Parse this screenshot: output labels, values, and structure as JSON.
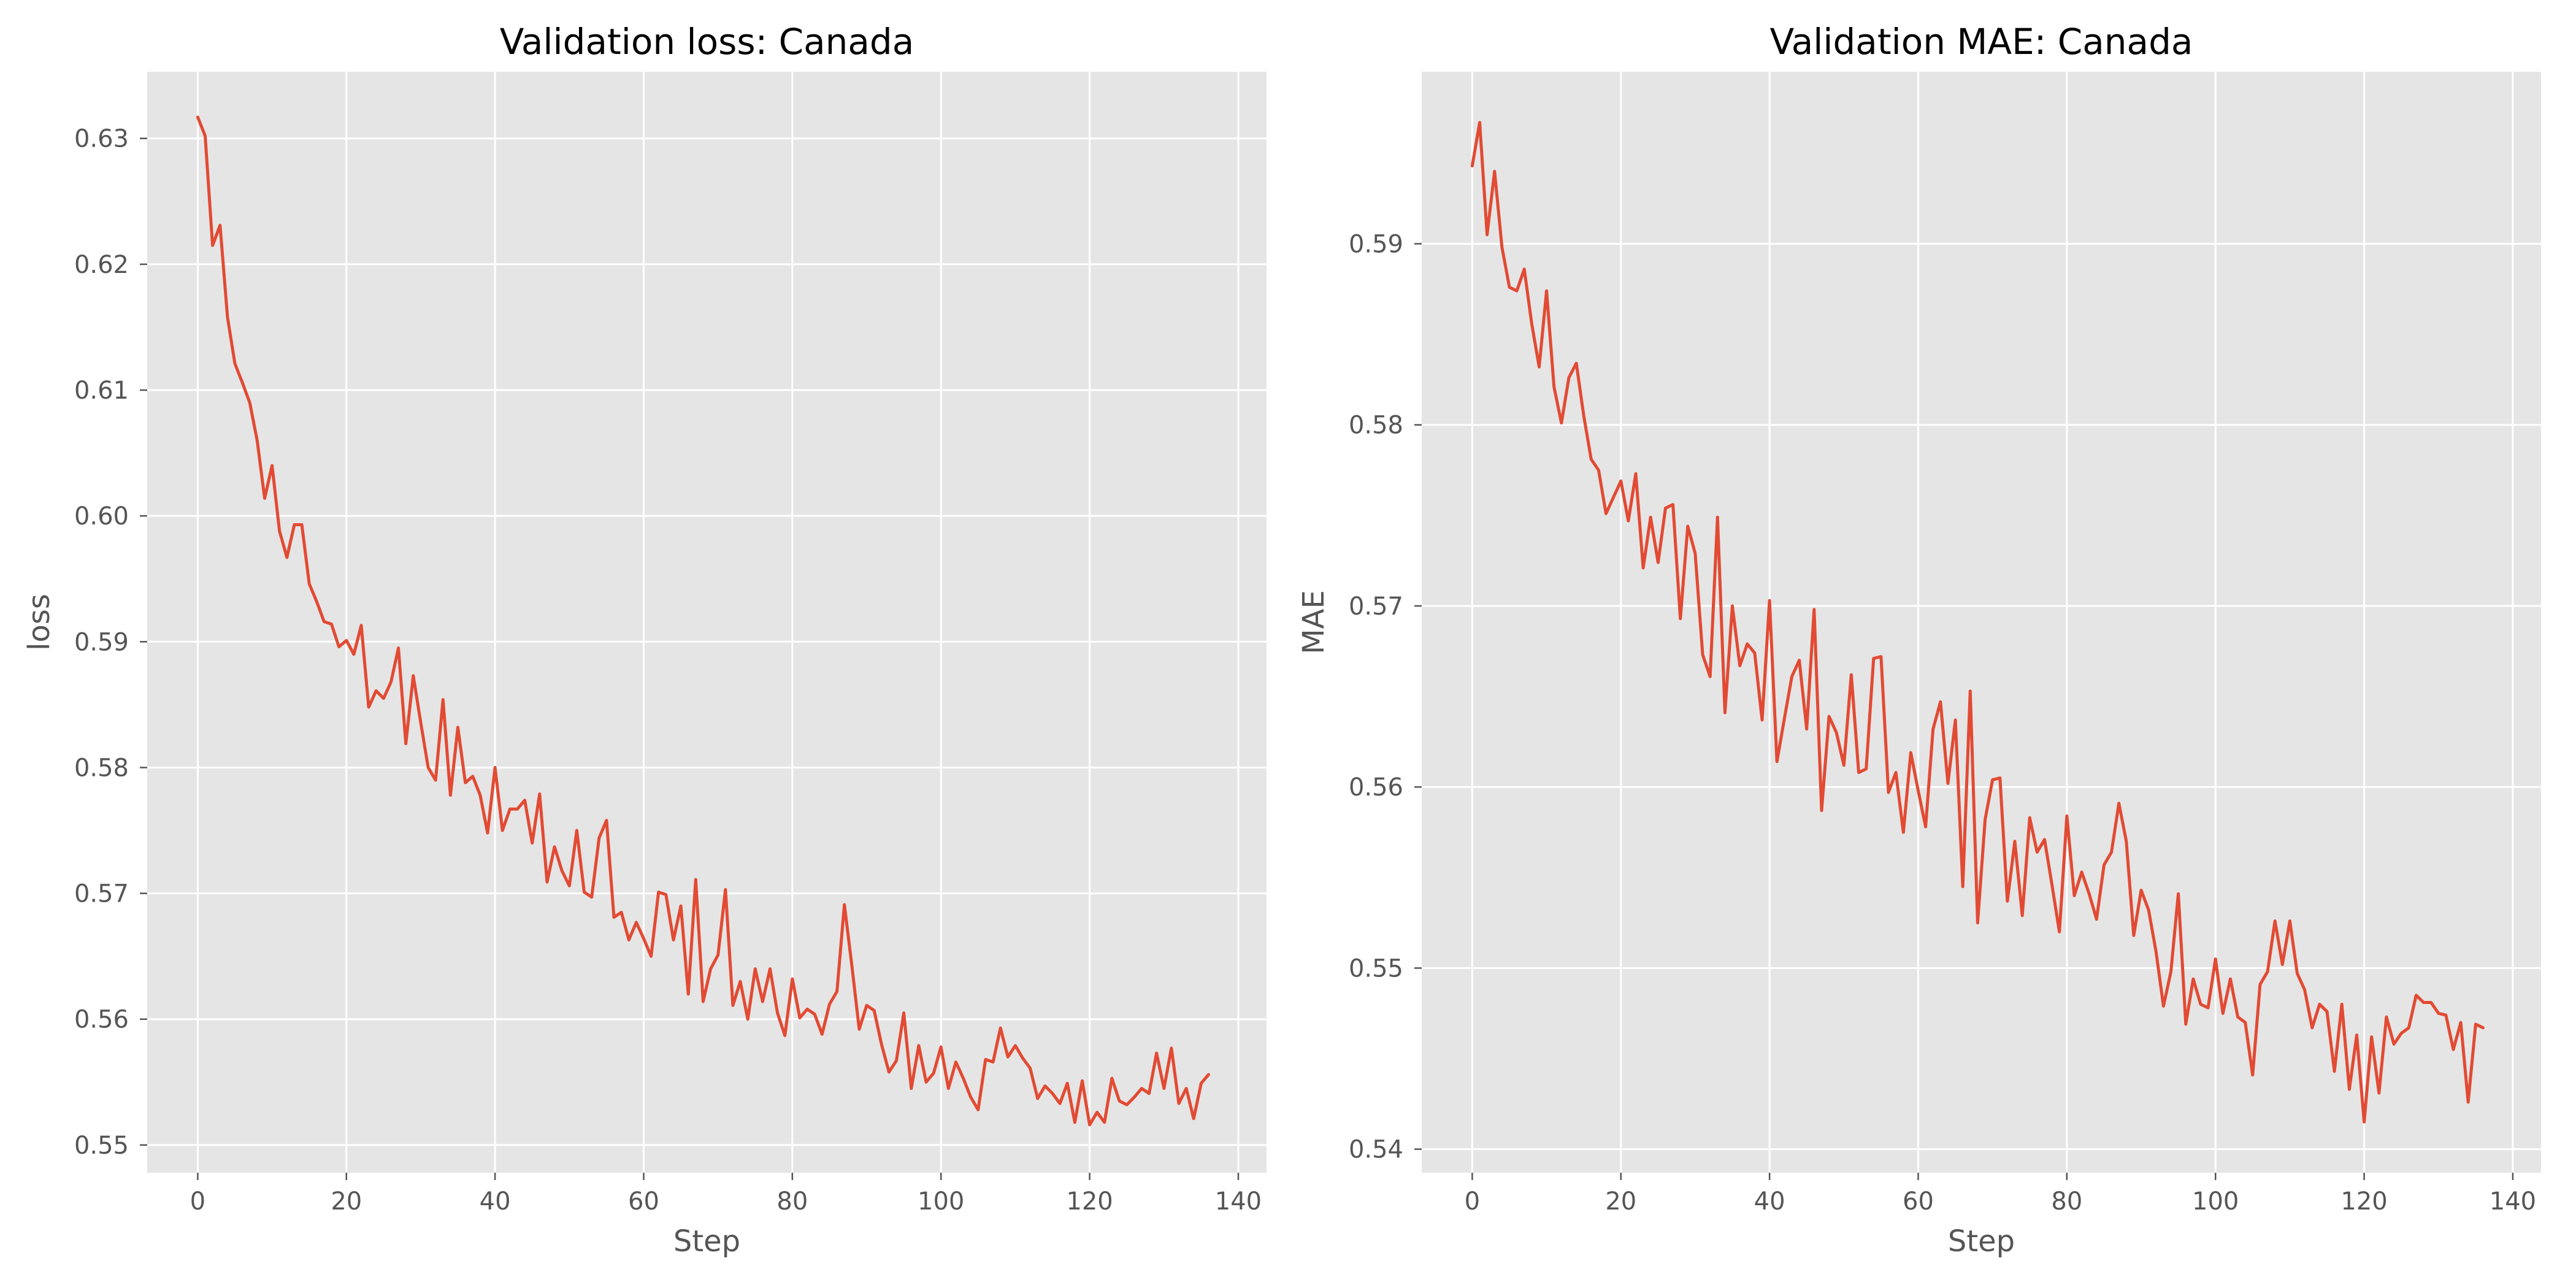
{
  "figure": {
    "background": "#ffffff",
    "panel_background": "#e5e5e5",
    "grid_color": "#ffffff",
    "line_color": "#e24a33",
    "text_color": "#555555"
  },
  "chart_data": [
    {
      "type": "line",
      "title": "Validation loss: Canada",
      "xlabel": "Step",
      "ylabel": "loss",
      "xlim": [
        -6.8,
        143.8
      ],
      "ylim": [
        0.5478,
        0.6353
      ],
      "xticks": [
        0,
        20,
        40,
        60,
        80,
        100,
        120,
        140
      ],
      "xtick_labels": [
        "0",
        "20",
        "40",
        "60",
        "80",
        "100",
        "120",
        "140"
      ],
      "yticks": [
        0.55,
        0.56,
        0.57,
        0.58,
        0.59,
        0.6,
        0.61,
        0.62,
        0.63
      ],
      "ytick_labels": [
        "0.55",
        "0.56",
        "0.57",
        "0.58",
        "0.59",
        "0.60",
        "0.61",
        "0.62",
        "0.63"
      ],
      "grid": true,
      "series": [
        {
          "color": "#e24a33",
          "x_start": 0,
          "x_step": 1,
          "values": [
            0.6317,
            0.6302,
            0.6215,
            0.6231,
            0.6158,
            0.6121,
            0.6106,
            0.609,
            0.606,
            0.6014,
            0.604,
            0.5988,
            0.5967,
            0.5993,
            0.5993,
            0.5946,
            0.5932,
            0.5916,
            0.5914,
            0.5896,
            0.5901,
            0.589,
            0.5913,
            0.5848,
            0.5861,
            0.5855,
            0.5868,
            0.5895,
            0.5819,
            0.5873,
            0.5836,
            0.58,
            0.579,
            0.5854,
            0.5778,
            0.5832,
            0.5788,
            0.5793,
            0.5778,
            0.5748,
            0.58,
            0.575,
            0.5767,
            0.5767,
            0.5774,
            0.574,
            0.5779,
            0.5709,
            0.5737,
            0.5718,
            0.5706,
            0.575,
            0.5701,
            0.5697,
            0.5744,
            0.5758,
            0.5681,
            0.5685,
            0.5663,
            0.5677,
            0.5664,
            0.565,
            0.5701,
            0.5699,
            0.5663,
            0.569,
            0.562,
            0.5711,
            0.5614,
            0.564,
            0.5651,
            0.5703,
            0.5611,
            0.563,
            0.56,
            0.564,
            0.5614,
            0.564,
            0.5605,
            0.5587,
            0.5632,
            0.5601,
            0.5608,
            0.5604,
            0.5588,
            0.5612,
            0.5622,
            0.5691,
            0.5643,
            0.5592,
            0.5611,
            0.5607,
            0.558,
            0.5558,
            0.5567,
            0.5605,
            0.5545,
            0.5579,
            0.555,
            0.5557,
            0.5578,
            0.5545,
            0.5566,
            0.5553,
            0.5538,
            0.5528,
            0.5568,
            0.5566,
            0.5593,
            0.557,
            0.5579,
            0.5569,
            0.5561,
            0.5537,
            0.5547,
            0.5541,
            0.5533,
            0.5549,
            0.5518,
            0.5551,
            0.5516,
            0.5526,
            0.5518,
            0.5553,
            0.5535,
            0.5532,
            0.5538,
            0.5545,
            0.5541,
            0.5573,
            0.5545,
            0.5577,
            0.5533,
            0.5545,
            0.5521,
            0.5549,
            0.5556
          ]
        }
      ]
    },
    {
      "type": "line",
      "title": "Validation MAE: Canada",
      "xlabel": "Step",
      "ylabel": "MAE",
      "xlim": [
        -6.8,
        143.8
      ],
      "ylim": [
        0.5387,
        0.5995
      ],
      "xticks": [
        0,
        20,
        40,
        60,
        80,
        100,
        120,
        140
      ],
      "xtick_labels": [
        "0",
        "20",
        "40",
        "60",
        "80",
        "100",
        "120",
        "140"
      ],
      "yticks": [
        0.54,
        0.55,
        0.56,
        0.57,
        0.58,
        0.59
      ],
      "ytick_labels": [
        "0.54",
        "0.55",
        "0.56",
        "0.57",
        "0.58",
        "0.59"
      ],
      "grid": true,
      "series": [
        {
          "color": "#e24a33",
          "x_start": 0,
          "x_step": 1,
          "values": [
            0.5943,
            0.5967,
            0.5905,
            0.594,
            0.5898,
            0.5876,
            0.5874,
            0.5886,
            0.5856,
            0.5832,
            0.5874,
            0.5821,
            0.5801,
            0.5826,
            0.5834,
            0.5805,
            0.5781,
            0.5775,
            0.5751,
            0.576,
            0.5769,
            0.5747,
            0.5773,
            0.5721,
            0.5749,
            0.5724,
            0.5754,
            0.5756,
            0.5693,
            0.5744,
            0.5729,
            0.5673,
            0.5661,
            0.5749,
            0.5641,
            0.57,
            0.5667,
            0.5679,
            0.5674,
            0.5637,
            0.5703,
            0.5614,
            0.5638,
            0.5661,
            0.567,
            0.5632,
            0.5698,
            0.5587,
            0.5639,
            0.563,
            0.5612,
            0.5662,
            0.5608,
            0.561,
            0.5671,
            0.5672,
            0.5597,
            0.5608,
            0.5575,
            0.5619,
            0.5598,
            0.5578,
            0.5632,
            0.5647,
            0.5602,
            0.5637,
            0.5545,
            0.5653,
            0.5525,
            0.5582,
            0.5604,
            0.5605,
            0.5537,
            0.557,
            0.5529,
            0.5583,
            0.5564,
            0.5571,
            0.5546,
            0.552,
            0.5584,
            0.554,
            0.5553,
            0.5541,
            0.5527,
            0.5557,
            0.5564,
            0.5591,
            0.557,
            0.5518,
            0.5543,
            0.5532,
            0.5509,
            0.5479,
            0.5498,
            0.5541,
            0.5469,
            0.5494,
            0.548,
            0.5478,
            0.5505,
            0.5475,
            0.5494,
            0.5473,
            0.547,
            0.5441,
            0.5491,
            0.5498,
            0.5526,
            0.5502,
            0.5526,
            0.5497,
            0.5488,
            0.5467,
            0.548,
            0.5476,
            0.5443,
            0.548,
            0.5433,
            0.5463,
            0.5415,
            0.5462,
            0.5431,
            0.5473,
            0.5458,
            0.5464,
            0.5467,
            0.5485,
            0.5481,
            0.5481,
            0.5475,
            0.5474,
            0.5455,
            0.547,
            0.5426,
            0.5469,
            0.5467
          ]
        }
      ]
    }
  ]
}
